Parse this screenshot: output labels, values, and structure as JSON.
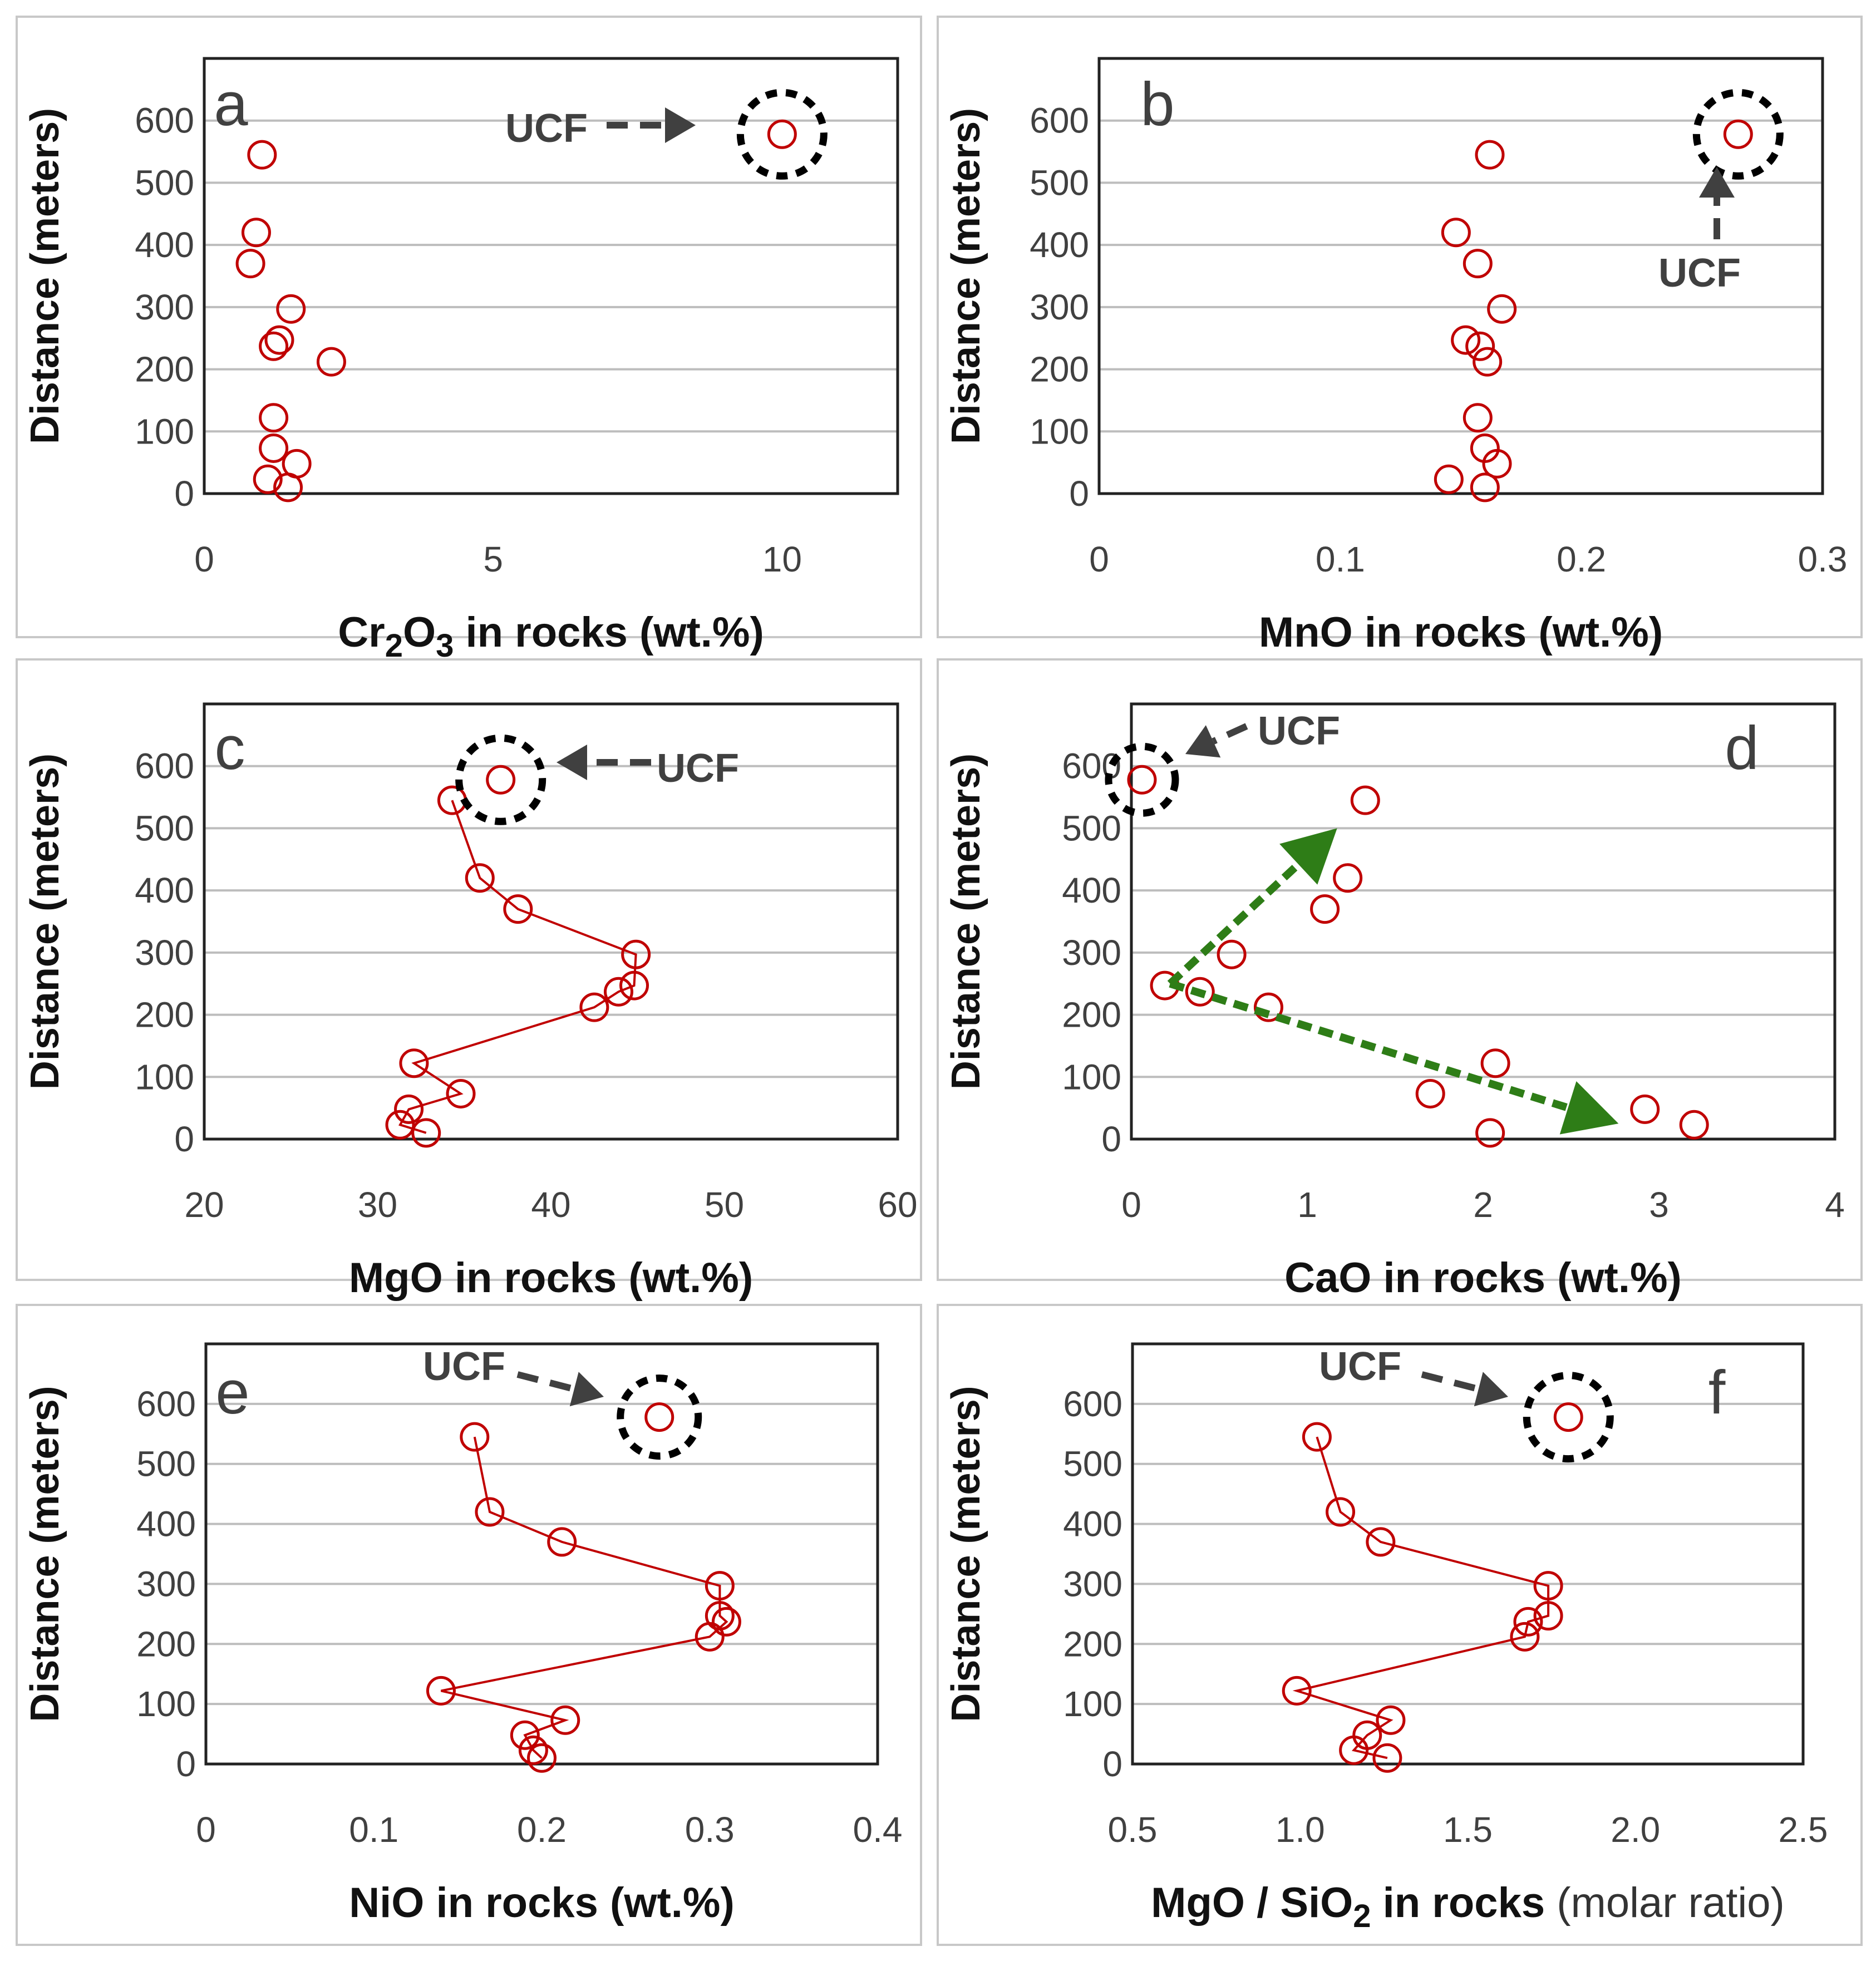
{
  "chart_data": [
    {
      "type": "scatter",
      "letter": "a",
      "xlabel": "Cr2O3 in rocks (wt.%)",
      "xlabel_main": "Cr",
      "xlabel_sub1": "2",
      "xlabel_mid": "O",
      "xlabel_sub2": "3",
      "xlabel_rest": "  in rocks (wt.%)",
      "ylabel": "Distance (meters)",
      "xlim": [
        0,
        12
      ],
      "ylim": [
        0,
        700
      ],
      "xticks": [
        0,
        5,
        10
      ],
      "xtick_labels": [
        "0",
        "5",
        "10"
      ],
      "yticks": [
        0,
        100,
        200,
        300,
        400,
        500,
        600
      ],
      "ytick_labels": [
        "0",
        "100",
        "200",
        "300",
        "400",
        "500",
        "600"
      ],
      "connect": false,
      "points": [
        [
          1.0,
          545
        ],
        [
          0.9,
          420
        ],
        [
          0.8,
          370
        ],
        [
          1.5,
          297
        ],
        [
          1.3,
          247
        ],
        [
          1.2,
          237
        ],
        [
          2.2,
          212
        ],
        [
          1.2,
          122
        ],
        [
          1.2,
          73
        ],
        [
          1.6,
          48
        ],
        [
          1.1,
          23
        ],
        [
          1.45,
          10
        ]
      ],
      "ucf": {
        "label": "UCF",
        "x": 10.0,
        "y": 578
      }
    },
    {
      "type": "scatter",
      "letter": "b",
      "xlabel": "MnO in rocks (wt.%)",
      "ylabel": "Distance (meters)",
      "xlim": [
        0,
        0.3
      ],
      "ylim": [
        0,
        700
      ],
      "xticks": [
        0,
        0.1,
        0.2,
        0.3
      ],
      "xtick_labels": [
        "0",
        "0.1",
        "0.2",
        "0.3"
      ],
      "yticks": [
        0,
        100,
        200,
        300,
        400,
        500,
        600
      ],
      "ytick_labels": [
        "0",
        "100",
        "200",
        "300",
        "400",
        "500",
        "600"
      ],
      "connect": false,
      "points": [
        [
          0.162,
          545
        ],
        [
          0.148,
          420
        ],
        [
          0.157,
          370
        ],
        [
          0.167,
          297
        ],
        [
          0.152,
          247
        ],
        [
          0.158,
          237
        ],
        [
          0.161,
          212
        ],
        [
          0.157,
          122
        ],
        [
          0.16,
          73
        ],
        [
          0.165,
          48
        ],
        [
          0.145,
          23
        ],
        [
          0.16,
          10
        ]
      ],
      "ucf": {
        "label": "UCF",
        "x": 0.265,
        "y": 578
      }
    },
    {
      "type": "line",
      "letter": "c",
      "xlabel": "MgO in rocks (wt.%)",
      "ylabel": "Distance (meters)",
      "xlim": [
        20,
        60
      ],
      "ylim": [
        0,
        700
      ],
      "xticks": [
        20,
        30,
        40,
        50,
        60
      ],
      "xtick_labels": [
        "20",
        "30",
        "40",
        "50",
        "60"
      ],
      "yticks": [
        0,
        100,
        200,
        300,
        400,
        500,
        600
      ],
      "ytick_labels": [
        "0",
        "100",
        "200",
        "300",
        "400",
        "500",
        "600"
      ],
      "connect": true,
      "points": [
        [
          34.3,
          545
        ],
        [
          35.9,
          420
        ],
        [
          38.1,
          370
        ],
        [
          44.9,
          297
        ],
        [
          44.8,
          247
        ],
        [
          43.9,
          237
        ],
        [
          42.5,
          212
        ],
        [
          32.1,
          122
        ],
        [
          34.8,
          73
        ],
        [
          31.8,
          48
        ],
        [
          31.3,
          23
        ],
        [
          32.8,
          10
        ]
      ],
      "ucf": {
        "label": "UCF",
        "x": 37.1,
        "y": 578
      }
    },
    {
      "type": "scatter",
      "letter": "d",
      "xlabel": "CaO in rocks (wt.%)",
      "ylabel": "Distance (meters)",
      "xlim": [
        0,
        4
      ],
      "ylim": [
        0,
        700
      ],
      "xticks": [
        0,
        1,
        2,
        3,
        4
      ],
      "xtick_labels": [
        "0",
        "1",
        "2",
        "3",
        "4"
      ],
      "yticks": [
        0,
        100,
        200,
        300,
        400,
        500,
        600
      ],
      "ytick_labels": [
        "0",
        "100",
        "200",
        "300",
        "400",
        "500",
        "600"
      ],
      "connect": false,
      "points": [
        [
          1.33,
          545
        ],
        [
          1.23,
          420
        ],
        [
          1.1,
          370
        ],
        [
          0.57,
          297
        ],
        [
          0.19,
          247
        ],
        [
          0.39,
          237
        ],
        [
          0.78,
          212
        ],
        [
          2.07,
          122
        ],
        [
          1.7,
          73
        ],
        [
          2.92,
          48
        ],
        [
          3.2,
          23
        ],
        [
          2.04,
          10
        ]
      ],
      "ucf": {
        "label": "UCF",
        "x": 0.06,
        "y": 578
      },
      "trends": [
        {
          "from": [
            0.22,
            250
          ],
          "to": [
            1.17,
            500
          ]
        },
        {
          "from": [
            0.22,
            250
          ],
          "to": [
            2.77,
            25
          ]
        }
      ]
    },
    {
      "type": "line",
      "letter": "e",
      "xlabel": "NiO in rocks (wt.%)",
      "ylabel": "Distance (meters)",
      "xlim": [
        0,
        0.4
      ],
      "ylim": [
        0,
        700
      ],
      "xticks": [
        0,
        0.1,
        0.2,
        0.3,
        0.4
      ],
      "xtick_labels": [
        "0",
        "0.1",
        "0.2",
        "0.3",
        "0.4"
      ],
      "yticks": [
        0,
        100,
        200,
        300,
        400,
        500,
        600
      ],
      "ytick_labels": [
        "0",
        "100",
        "200",
        "300",
        "400",
        "500",
        "600"
      ],
      "connect": true,
      "points": [
        [
          0.16,
          545
        ],
        [
          0.169,
          420
        ],
        [
          0.212,
          370
        ],
        [
          0.306,
          297
        ],
        [
          0.306,
          247
        ],
        [
          0.31,
          237
        ],
        [
          0.3,
          212
        ],
        [
          0.14,
          122
        ],
        [
          0.214,
          73
        ],
        [
          0.19,
          48
        ],
        [
          0.195,
          23
        ],
        [
          0.2,
          10
        ]
      ],
      "ucf": {
        "label": "UCF",
        "x": 0.27,
        "y": 578
      }
    },
    {
      "type": "line",
      "letter": "f",
      "xlabel": "MgO / SiO2 in rocks (molar ratio)",
      "xlabel_main": "MgO / SiO",
      "xlabel_sub1": "2",
      "xlabel_rest": " in rocks",
      "xlabel_light": " (molar ratio)",
      "ylabel": "Distance (meters)",
      "xlim": [
        0.5,
        2.5
      ],
      "ylim": [
        0,
        700
      ],
      "xticks": [
        0.5,
        1.0,
        1.5,
        2.0,
        2.5
      ],
      "xtick_labels": [
        "0.5",
        "1.0",
        "1.5",
        "2.0",
        "2.5"
      ],
      "yticks": [
        0,
        100,
        200,
        300,
        400,
        500,
        600
      ],
      "ytick_labels": [
        "0",
        "100",
        "200",
        "300",
        "400",
        "500",
        "600"
      ],
      "connect": true,
      "points": [
        [
          1.05,
          545
        ],
        [
          1.12,
          420
        ],
        [
          1.24,
          370
        ],
        [
          1.74,
          297
        ],
        [
          1.74,
          247
        ],
        [
          1.68,
          237
        ],
        [
          1.67,
          212
        ],
        [
          0.99,
          122
        ],
        [
          1.27,
          73
        ],
        [
          1.2,
          48
        ],
        [
          1.16,
          23
        ],
        [
          1.26,
          10
        ]
      ],
      "ucf": {
        "label": "UCF",
        "x": 1.8,
        "y": 578
      }
    }
  ]
}
